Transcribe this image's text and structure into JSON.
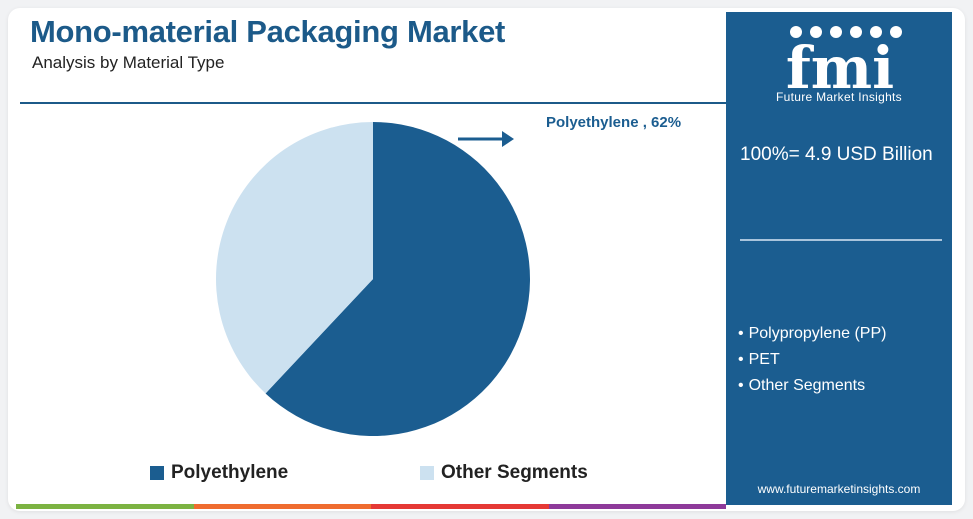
{
  "header": {
    "title": "Mono-material Packaging Market",
    "subtitle": "Analysis by Material Type"
  },
  "chart_data": {
    "type": "pie",
    "slices": [
      {
        "label": "Polyethylene",
        "value": 62,
        "color": "#1b5d90"
      },
      {
        "label": "Other Segments",
        "value": 38,
        "color": "#cce1f0"
      }
    ],
    "annotation": "Polyethylene , 62%",
    "legend": {
      "placement": "bottom"
    }
  },
  "legend": {
    "items": [
      {
        "label": "Polyethylene",
        "color": "#1b5d90"
      },
      {
        "label": "Other Segments",
        "color": "#cce1f0"
      }
    ]
  },
  "side_panel": {
    "logo_text": "fmi",
    "logo_tagline": "Future Market Insights",
    "total": "100%= 4.9 USD Billion",
    "segments": [
      "Polypropylene (PP)",
      "PET",
      "Other Segments"
    ],
    "website": "www.futuremarketinsights.com"
  },
  "colors": {
    "primary": "#1b5d90",
    "light": "#cce1f0",
    "title": "#1c5a89",
    "bottom_bar": [
      "#7cb342",
      "#ef6c2f",
      "#e53935",
      "#8e3a9a"
    ]
  }
}
